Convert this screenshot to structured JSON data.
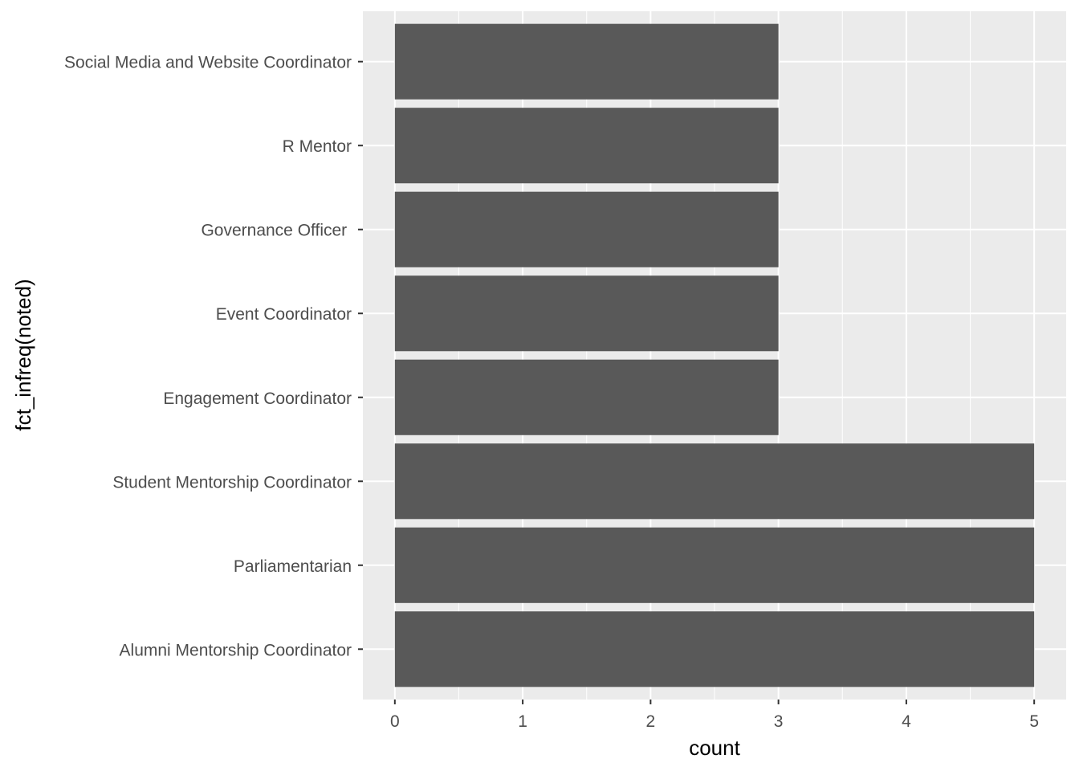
{
  "chart_data": {
    "type": "bar",
    "orientation": "horizontal",
    "categories": [
      "Alumni Mentorship Coordinator",
      "Parliamentarian",
      "Student Mentorship Coordinator",
      "Engagement Coordinator",
      "Event Coordinator",
      "Governance Officer ",
      "R Mentor",
      "Social Media and Website Coordinator"
    ],
    "values": [
      5,
      5,
      5,
      3,
      3,
      3,
      3,
      3
    ],
    "xlabel": "count",
    "ylabel": "fct_infreq(noted)",
    "xticks": [
      "0",
      "1",
      "2",
      "3",
      "4",
      "5"
    ],
    "xlim": [
      -0.25,
      5.25
    ],
    "grid": true,
    "colors": {
      "bar": "#595959",
      "panel": "#EBEBEB",
      "grid": "#FFFFFF",
      "text": "#4D4D4D"
    }
  }
}
